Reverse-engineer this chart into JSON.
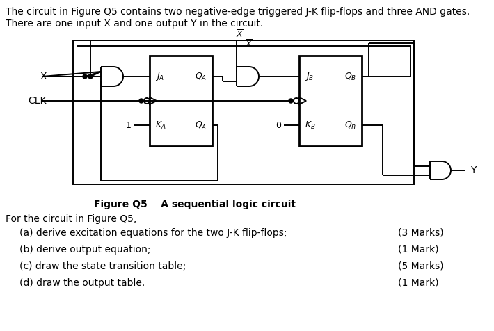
{
  "background_color": "#ffffff",
  "title_line1": "The circuit in Figure Q5 contains two negative-edge triggered J-K flip-flops and three AND gates.",
  "title_line2": "There are one input X and one output Y in the circuit.",
  "figure_caption": "Figure Q5    A sequential logic circuit",
  "questions_header": "For the circuit in Figure Q5,",
  "questions": [
    "(a) derive excitation equations for the two J-K flip-flops;",
    "(b) derive output equation;",
    "(c) draw the state transition table;",
    "(d) draw the output table."
  ],
  "marks": [
    "(3 Marks)",
    "(1 Mark)",
    "(5 Marks)",
    "(1 Mark)"
  ]
}
